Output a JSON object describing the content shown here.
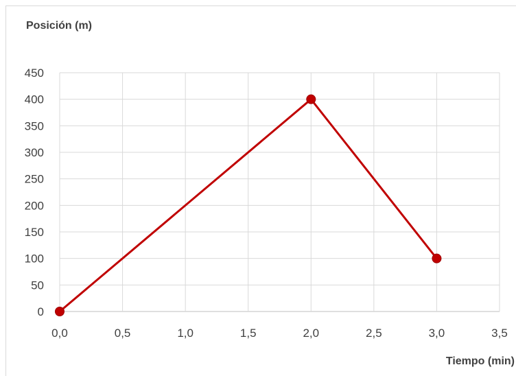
{
  "chart_data": {
    "type": "line",
    "ylabel": "Posición (m)",
    "xlabel": "Tiempo (min)",
    "xlim": [
      0,
      3.5
    ],
    "ylim": [
      0,
      450
    ],
    "x_ticks": [
      "0,0",
      "0,5",
      "1,0",
      "1,5",
      "2,0",
      "2,5",
      "3,0",
      "3,5"
    ],
    "y_ticks": [
      "0",
      "50",
      "100",
      "150",
      "200",
      "250",
      "300",
      "350",
      "400",
      "450"
    ],
    "grid": true,
    "series": [
      {
        "color": "#c00000",
        "points": [
          {
            "x": 0.0,
            "y": 0
          },
          {
            "x": 2.0,
            "y": 400
          },
          {
            "x": 3.0,
            "y": 100
          }
        ]
      }
    ],
    "gridline_color": "#d9d9d9"
  }
}
